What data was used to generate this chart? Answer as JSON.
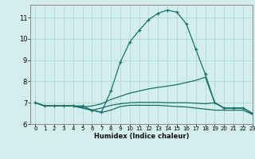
{
  "background_color": "#d4eeee",
  "grid_color": "#aad4d4",
  "line_color": "#1a7068",
  "xlabel": "Humidex (Indice chaleur)",
  "xlim": [
    -0.5,
    23
  ],
  "ylim": [
    6.0,
    11.6
  ],
  "yticks": [
    6,
    7,
    8,
    9,
    10,
    11
  ],
  "xticks": [
    0,
    1,
    2,
    3,
    4,
    5,
    6,
    7,
    8,
    9,
    10,
    11,
    12,
    13,
    14,
    15,
    16,
    17,
    18,
    19,
    20,
    21,
    22,
    23
  ],
  "lines": [
    {
      "x": [
        0,
        1,
        2,
        3,
        4,
        5,
        6,
        7,
        8,
        9,
        10,
        11,
        12,
        13,
        14,
        15,
        16,
        17,
        18,
        19,
        20,
        21,
        22,
        23
      ],
      "y": [
        7.0,
        6.85,
        6.85,
        6.85,
        6.85,
        6.85,
        6.65,
        6.55,
        7.55,
        8.9,
        9.85,
        10.4,
        10.9,
        11.2,
        11.35,
        11.25,
        10.7,
        9.5,
        8.35,
        7.0,
        6.75,
        6.75,
        6.75,
        6.5
      ],
      "marker": "+",
      "markersize": 3.5,
      "linewidth": 0.9
    },
    {
      "x": [
        0,
        1,
        2,
        3,
        4,
        5,
        6,
        7,
        8,
        9,
        10,
        11,
        12,
        13,
        14,
        15,
        16,
        17,
        18,
        19,
        20,
        21,
        22,
        23
      ],
      "y": [
        7.0,
        6.85,
        6.85,
        6.85,
        6.85,
        6.8,
        6.85,
        6.95,
        7.15,
        7.3,
        7.45,
        7.55,
        7.65,
        7.72,
        7.78,
        7.85,
        7.95,
        8.05,
        8.2,
        7.0,
        6.75,
        6.75,
        6.75,
        6.5
      ],
      "marker": null,
      "markersize": 0,
      "linewidth": 0.9
    },
    {
      "x": [
        0,
        1,
        2,
        3,
        4,
        5,
        6,
        7,
        8,
        9,
        10,
        11,
        12,
        13,
        14,
        15,
        16,
        17,
        18,
        19,
        20,
        21,
        22,
        23
      ],
      "y": [
        7.0,
        6.85,
        6.85,
        6.85,
        6.85,
        6.75,
        6.65,
        6.55,
        6.65,
        6.82,
        6.88,
        6.88,
        6.88,
        6.88,
        6.85,
        6.82,
        6.8,
        6.75,
        6.7,
        6.65,
        6.65,
        6.65,
        6.65,
        6.45
      ],
      "marker": null,
      "markersize": 0,
      "linewidth": 0.9
    },
    {
      "x": [
        0,
        1,
        2,
        3,
        4,
        5,
        6,
        7,
        8,
        9,
        10,
        11,
        12,
        13,
        14,
        15,
        16,
        17,
        18,
        19,
        20,
        21,
        22,
        23
      ],
      "y": [
        7.0,
        6.85,
        6.85,
        6.85,
        6.85,
        6.75,
        6.65,
        6.75,
        6.88,
        6.95,
        7.0,
        7.02,
        7.02,
        7.02,
        7.0,
        7.0,
        7.0,
        6.98,
        6.95,
        7.0,
        6.75,
        6.75,
        6.75,
        6.5
      ],
      "marker": null,
      "markersize": 0,
      "linewidth": 0.9
    }
  ]
}
